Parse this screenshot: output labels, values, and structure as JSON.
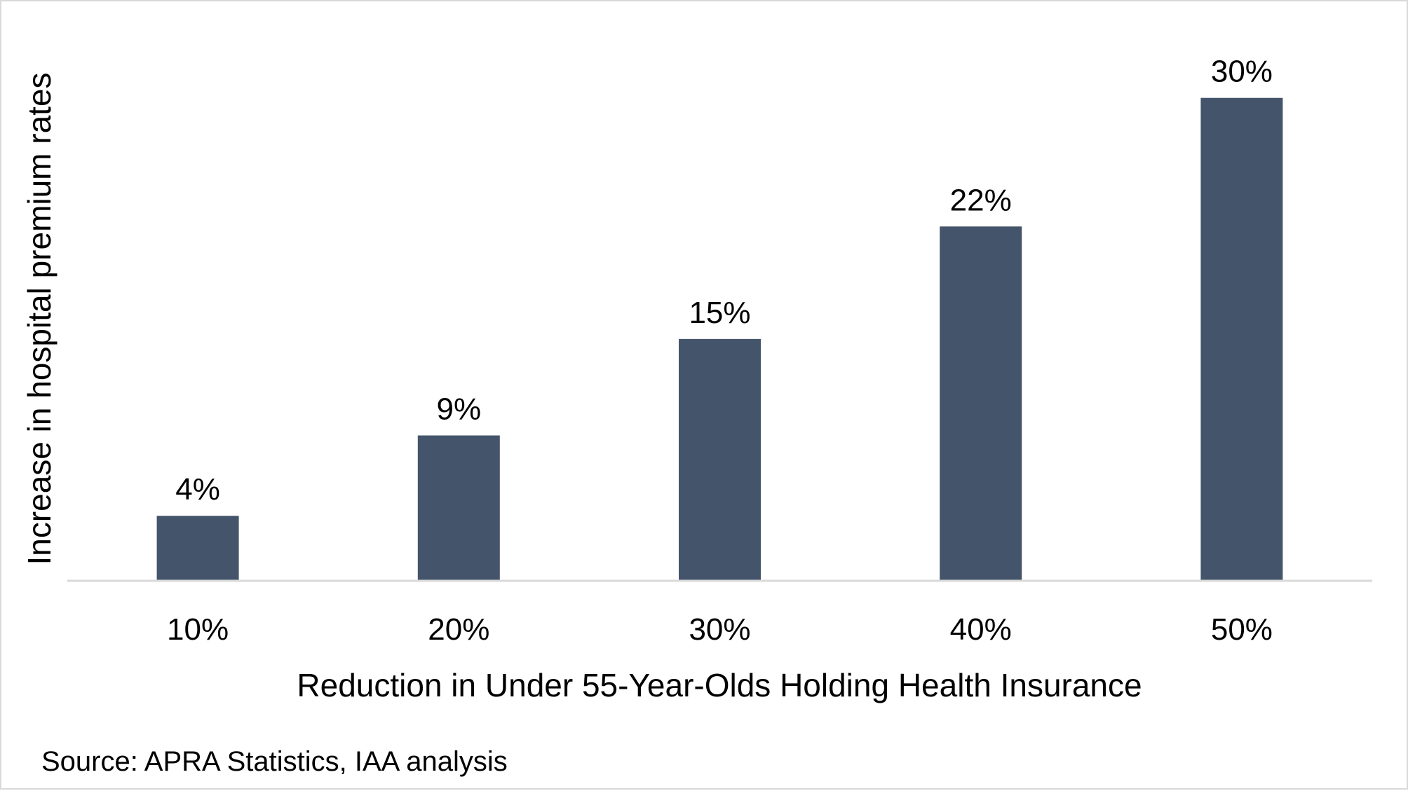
{
  "chart_data": {
    "type": "bar",
    "categories": [
      "10%",
      "20%",
      "30%",
      "40%",
      "50%"
    ],
    "values": [
      4,
      9,
      15,
      22,
      30
    ],
    "value_labels": [
      "4%",
      "9%",
      "15%",
      "22%",
      "30%"
    ],
    "unit": "%",
    "title": "",
    "xlabel": "Reduction in Under 55-Year-Olds Holding Health Insurance",
    "ylabel": "Increase in hospital premium rates",
    "ylim": [
      0,
      35
    ],
    "grid": false,
    "legend": "none",
    "bar_color": "#44546a",
    "axis_color": "#d9d9d9",
    "source_note": "Source: APRA Statistics, IAA analysis"
  }
}
